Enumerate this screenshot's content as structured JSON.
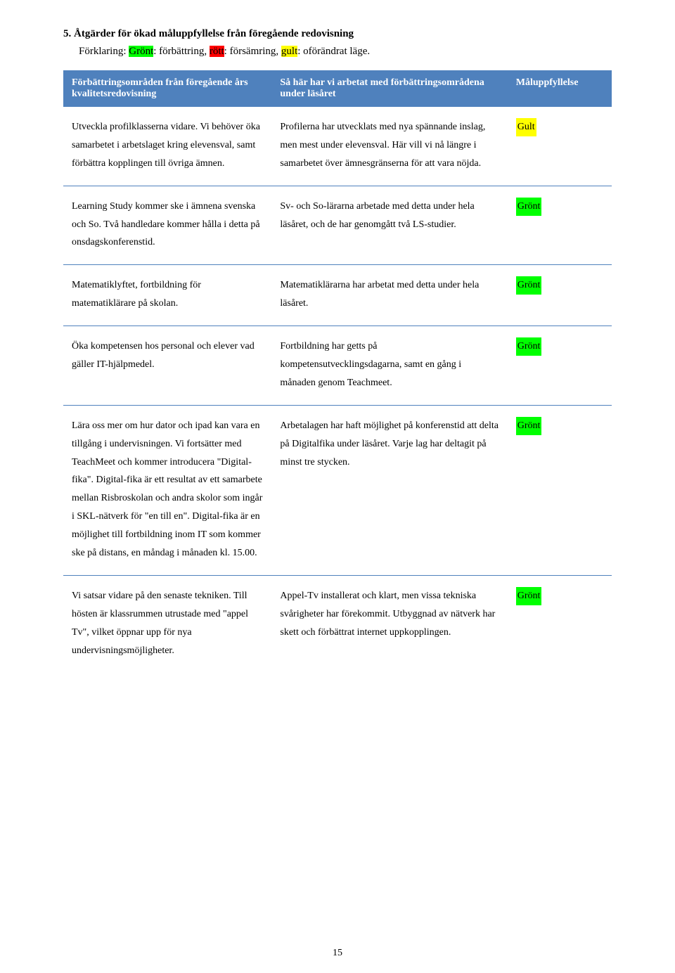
{
  "heading": "5.  Åtgärder för ökad måluppfyllelse från föregående redovisning",
  "explanation": {
    "prefix": "Förklaring: ",
    "green_label": "Grönt",
    "green_after": ": förbättring, ",
    "red_label": "rött",
    "red_after": ": försämring, ",
    "yellow_label": "gult",
    "yellow_after": ": oförändrat läge."
  },
  "header": {
    "col1": "Förbättringsområden från föregående års kvalitetsredovisning",
    "col2": "Så här har vi arbetat med förbättringsområdena under läsåret",
    "col3": "Måluppfyllelse"
  },
  "rows": [
    {
      "c1": "Utveckla profilklasserna vidare. Vi behöver öka samarbetet i arbetslaget kring elevensval, samt förbättra kopplingen till övriga ämnen.",
      "c2": "Profilerna har utvecklats med nya spännande inslag, men mest under elevensval. Här vill vi nå längre i samarbetet över ämnesgränserna för att vara nöjda.",
      "badge": "Gult",
      "badge_class": "hl-yellow"
    },
    {
      "c1": "Learning Study kommer ske i ämnena svenska och So. Två handledare kommer hålla i detta på onsdagskonferenstid.",
      "c2": "Sv- och So-lärarna arbetade med detta under hela läsåret, och de har genomgått två LS-studier.",
      "badge": "Grönt",
      "badge_class": "hl-green"
    },
    {
      "c1": "Matematiklyftet, fortbildning för matematiklärare på skolan.",
      "c2": "Matematiklärarna har arbetat med detta under hela läsåret.",
      "badge": "Grönt",
      "badge_class": "hl-green"
    },
    {
      "c1": "Öka kompetensen hos personal och elever vad gäller IT-hjälpmedel.",
      "c2": "Fortbildning har getts på kompetensutvecklingsdagarna, samt en gång i månaden genom Teachmeet.",
      "badge": "Grönt",
      "badge_class": "hl-green"
    },
    {
      "c1": "Lära oss mer om hur dator och ipad kan vara en tillgång i undervisningen. Vi fortsätter med TeachMeet och kommer introducera \"Digital-fika\". Digital-fika är ett resultat av ett samarbete mellan Risbroskolan och andra skolor som ingår i SKL-nätverk för \"en till en\". Digital-fika är en möjlighet till fortbildning inom IT som kommer ske på distans, en måndag i månaden kl. 15.00.",
      "c2": "Arbetalagen har haft möjlighet på konferenstid att delta på Digitalfika under läsåret. Varje lag har deltagit på minst tre stycken.",
      "badge": "Grönt",
      "badge_class": "hl-green"
    },
    {
      "c1": "Vi satsar vidare på den senaste tekniken. Till hösten är klassrummen utrustade med \"appel Tv\", vilket öppnar upp för nya undervisningsmöjligheter.",
      "c2": "Appel-Tv installerat och klart, men vissa tekniska svårigheter har förekommit. Utbyggnad av nätverk har skett och förbättrat internet uppkopplingen.",
      "badge": "Grönt",
      "badge_class": "hl-green"
    }
  ],
  "page_number": "15",
  "colors": {
    "header_bg": "#4f81bd",
    "green": "#00ff00",
    "red": "#ff0000",
    "yellow": "#ffff00"
  }
}
